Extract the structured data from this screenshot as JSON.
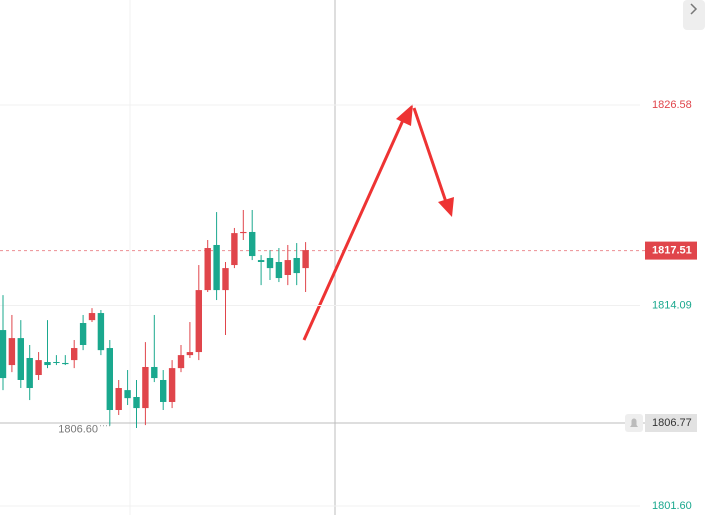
{
  "chart_data": {
    "type": "candlestick",
    "up_color": "#e0454b",
    "down_color": "#1aa88e",
    "open": [
      1812.56,
      1810.38,
      1812.06,
      1810.82,
      1809.76,
      1810.57,
      1810.57,
      1810.51,
      1810.69,
      1813.0,
      1813.18,
      1813.62,
      1811.44,
      1807.58,
      1808.82,
      1808.39,
      1807.7,
      1810.26,
      1809.45,
      1808.08,
      1810.19,
      1811.0,
      1811.19,
      1815.05,
      1817.86,
      1815.05,
      1816.61,
      1818.6,
      1818.67,
      1816.92,
      1817.05,
      1816.8,
      1815.99,
      1817.05,
      1816.42
    ],
    "high": [
      1814.74,
      1813.5,
      1813.18,
      1811.63,
      1811.19,
      1813.18,
      1811.0,
      1811.0,
      1811.94,
      1813.5,
      1813.93,
      1813.81,
      1811.94,
      1809.45,
      1810.07,
      1809.45,
      1811.81,
      1813.5,
      1810.07,
      1810.69,
      1811.63,
      1813.06,
      1816.61,
      1818.17,
      1819.91,
      1816.8,
      1818.92,
      1820.04,
      1820.04,
      1817.23,
      1817.54,
      1817.67,
      1817.86,
      1817.98,
      1818.04
    ],
    "low": [
      1808.82,
      1809.94,
      1808.95,
      1808.2,
      1809.45,
      1810.19,
      1810.38,
      1810.38,
      1810.19,
      1811.31,
      1813.06,
      1811.0,
      1806.6,
      1807.27,
      1807.89,
      1806.46,
      1806.64,
      1809.32,
      1807.58,
      1807.7,
      1809.94,
      1810.82,
      1810.69,
      1814.93,
      1814.43,
      1812.25,
      1816.42,
      1818.17,
      1816.92,
      1815.36,
      1815.68,
      1815.55,
      1815.36,
      1815.36,
      1814.93
    ],
    "close": [
      1809.57,
      1812.06,
      1809.45,
      1808.95,
      1810.69,
      1810.38,
      1810.51,
      1810.44,
      1811.44,
      1811.63,
      1813.62,
      1811.31,
      1807.58,
      1808.95,
      1808.32,
      1807.7,
      1810.26,
      1809.57,
      1808.08,
      1810.19,
      1811.0,
      1811.19,
      1815.05,
      1817.67,
      1815.05,
      1816.42,
      1818.6,
      1818.67,
      1817.17,
      1816.8,
      1816.42,
      1815.8,
      1816.92,
      1816.11,
      1817.54
    ],
    "ylim": [
      1801.04,
      1833.12
    ],
    "yticks": [
      1826.58,
      1814.09,
      {
        "value": 1801.6,
        "label": "1801.60"
      }
    ],
    "current_price": 1817.51,
    "crosshair_price": 1806.77,
    "low_label": {
      "value": 1806.6,
      "label": "1806.60"
    }
  }
}
